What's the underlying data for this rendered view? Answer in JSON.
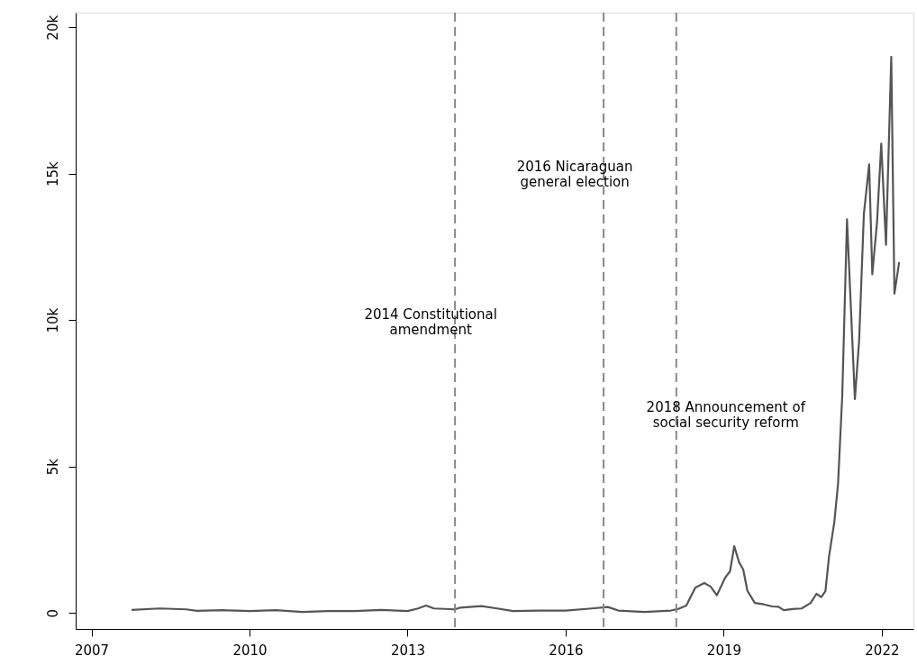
{
  "chart_data": {
    "type": "line",
    "xlim": [
      2006.7,
      2022.6
    ],
    "xticks": [
      2007,
      2010,
      2013,
      2016,
      2019,
      2022
    ],
    "ylim": [
      -550,
      20500
    ],
    "yticks": [
      0,
      {
        "value": 5000,
        "label": "5k"
      },
      {
        "value": 10000,
        "label": "10k"
      },
      {
        "value": 15000,
        "label": "15k"
      },
      {
        "value": 20000,
        "label": "20k"
      }
    ],
    "grid": false,
    "marker": "none",
    "line_style": "solid",
    "series": [
      {
        "color": "#555555",
        "x": [
          2007.76,
          2008.3,
          2008.8,
          2009.0,
          2009.5,
          2010.0,
          2010.5,
          2011.0,
          2011.5,
          2012.0,
          2012.5,
          2013.0,
          2013.2,
          2013.35,
          2013.5,
          2013.9,
          2014.0,
          2014.4,
          2014.7,
          2015.0,
          2015.5,
          2016.0,
          2016.5,
          2016.8,
          2017.0,
          2017.5,
          2018.0,
          2018.13,
          2018.29,
          2018.46,
          2018.63,
          2018.75,
          2018.87,
          2019.03,
          2019.12,
          2019.2,
          2019.29,
          2019.37,
          2019.45,
          2019.59,
          2019.76,
          2019.92,
          2020.04,
          2020.14,
          2020.31,
          2020.48,
          2020.65,
          2020.76,
          2020.85,
          2020.93,
          2021.0,
          2021.1,
          2021.17,
          2021.25,
          2021.34,
          2021.49,
          2021.57,
          2021.66,
          2021.76,
          2021.82,
          2021.91,
          2021.99,
          2022.08,
          2022.18,
          2022.24,
          2022.33
        ],
        "values": [
          100,
          150,
          120,
          70,
          90,
          60,
          90,
          30,
          60,
          60,
          100,
          60,
          150,
          250,
          150,
          120,
          180,
          230,
          150,
          60,
          80,
          80,
          150,
          200,
          80,
          30,
          80,
          130,
          250,
          860,
          1020,
          900,
          600,
          1210,
          1420,
          2280,
          1730,
          1480,
          750,
          340,
          290,
          220,
          210,
          90,
          130,
          150,
          340,
          650,
          540,
          740,
          1940,
          3110,
          4410,
          7430,
          13440,
          7300,
          9300,
          13620,
          15320,
          11560,
          13350,
          16030,
          12570,
          18990,
          10900,
          11980
        ]
      }
    ],
    "ref_lines": [
      {
        "axis": "x",
        "value": 2013.9,
        "color": "#888888",
        "line_style": "dashed",
        "label": "2014 Constitutional\namendment"
      },
      {
        "axis": "x",
        "value": 2016.72,
        "color": "#888888",
        "line_style": "dashed",
        "label": "2016 Nicaraguan\ngeneral election"
      },
      {
        "axis": "x",
        "value": 2018.1,
        "color": "#888888",
        "line_style": "dashed",
        "label": "2018 Announcement of\nsocial security reform"
      }
    ]
  }
}
